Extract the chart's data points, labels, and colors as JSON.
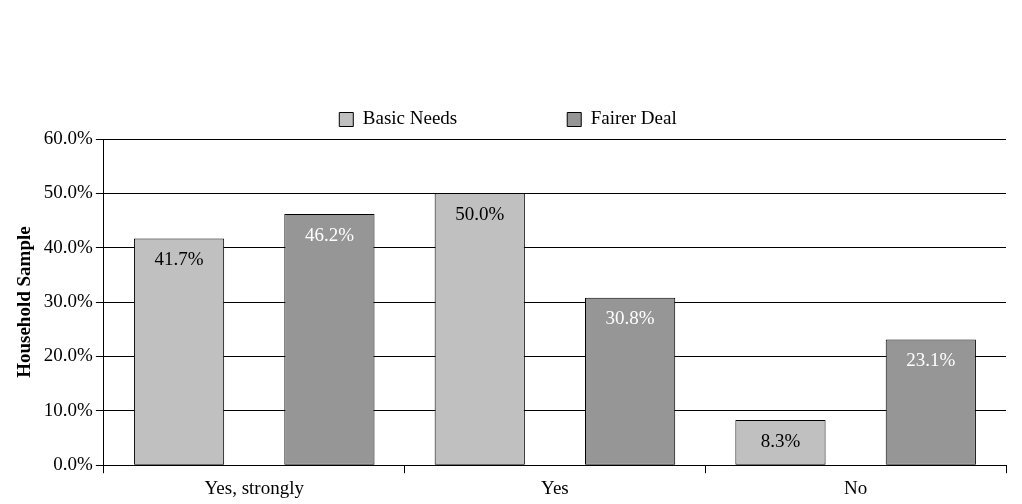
{
  "chart_data": {
    "type": "bar",
    "ylabel": "Household Sample",
    "categories": [
      "Yes, strongly",
      "Yes",
      "No"
    ],
    "series": [
      {
        "name": "Basic Needs",
        "color": "#c0c0c0",
        "values": [
          41.7,
          50.0,
          8.3
        ],
        "value_labels": [
          "41.7%",
          "50.0%",
          "8.3%"
        ]
      },
      {
        "name": "Fairer Deal",
        "color": "#969696",
        "values": [
          46.2,
          30.8,
          23.1
        ],
        "value_labels": [
          "46.2%",
          "30.8%",
          "23.1%"
        ]
      }
    ],
    "ylim": [
      0,
      60
    ],
    "yticks": [
      {
        "value": 0,
        "label": "0.0%"
      },
      {
        "value": 10,
        "label": "10.0%"
      },
      {
        "value": 20,
        "label": "20.0%"
      },
      {
        "value": 30,
        "label": "30.0%"
      },
      {
        "value": 40,
        "label": "40.0%"
      },
      {
        "value": 50,
        "label": "50.0%"
      },
      {
        "value": 60,
        "label": "60.0%"
      }
    ],
    "grid": "y",
    "legend": "top"
  }
}
